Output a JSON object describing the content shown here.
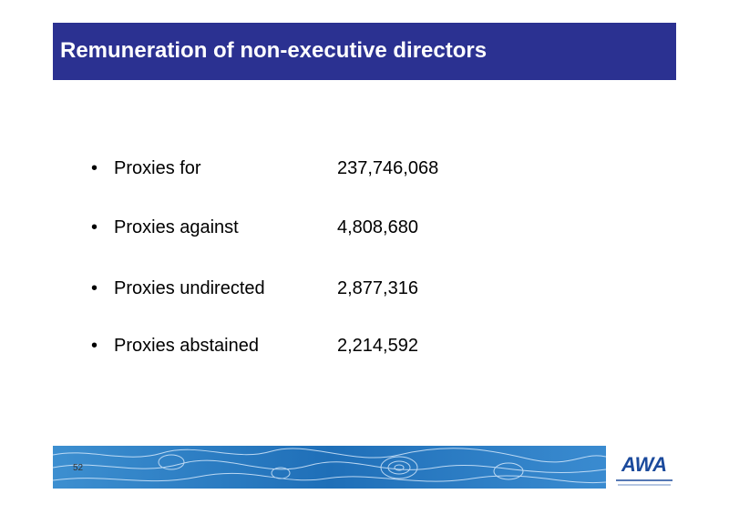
{
  "header": {
    "title": "Remuneration of non-executive directors"
  },
  "items": [
    {
      "label": "Proxies for",
      "value": "237,746,068"
    },
    {
      "label": "Proxies against",
      "value": "4,808,680"
    },
    {
      "label": "Proxies undirected",
      "value": "2,877,316"
    },
    {
      "label": "Proxies abstained",
      "value": "2,214,592"
    }
  ],
  "footer": {
    "page_number": "52",
    "logo": "AWA"
  }
}
